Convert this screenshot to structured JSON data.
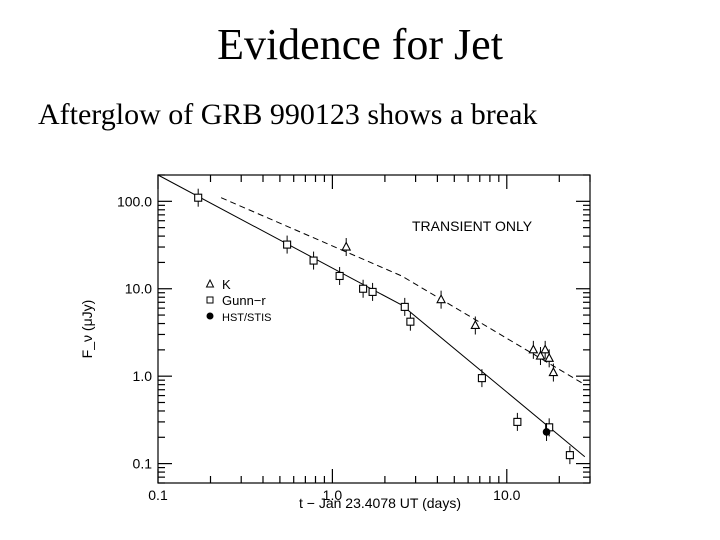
{
  "slide": {
    "title": "Evidence for Jet",
    "bullet": "Afterglow of GRB 990123 shows a break"
  },
  "chart_data": {
    "type": "scatter",
    "xscale": "log",
    "yscale": "log",
    "xlim": [
      0.1,
      30
    ],
    "ylim": [
      0.06,
      200
    ],
    "xlabel": "t − Jan 23.4078 UT (days)",
    "ylabel": "F_ν (μJy)",
    "xticks": [
      {
        "v": 0.1,
        "label": "0.1"
      },
      {
        "v": 1,
        "label": "1.0"
      },
      {
        "v": 10,
        "label": "10.0"
      }
    ],
    "yticks": [
      {
        "v": 0.1,
        "label": "0.1"
      },
      {
        "v": 1,
        "label": "1.0"
      },
      {
        "v": 10,
        "label": "10.0"
      },
      {
        "v": 100,
        "label": "100.0"
      }
    ],
    "annotation": "TRANSIENT ONLY",
    "legend": [
      {
        "symbol": "triangle",
        "label": "K"
      },
      {
        "symbol": "square",
        "label": "Gunn−r"
      },
      {
        "symbol": "circle",
        "label": "HST/STIS"
      }
    ],
    "series": [
      {
        "name": "K",
        "symbol": "triangle",
        "points": [
          {
            "x": 1.2,
            "y": 30
          },
          {
            "x": 4.2,
            "y": 7.5
          },
          {
            "x": 6.6,
            "y": 3.8
          },
          {
            "x": 14.2,
            "y": 2.0
          },
          {
            "x": 15.6,
            "y": 1.7
          },
          {
            "x": 16.6,
            "y": 2.0
          },
          {
            "x": 17.5,
            "y": 1.6
          },
          {
            "x": 18.5,
            "y": 1.1
          }
        ]
      },
      {
        "name": "Gunn−r",
        "symbol": "square",
        "points": [
          {
            "x": 0.17,
            "y": 110
          },
          {
            "x": 0.55,
            "y": 32
          },
          {
            "x": 0.78,
            "y": 21
          },
          {
            "x": 1.1,
            "y": 14
          },
          {
            "x": 1.5,
            "y": 10
          },
          {
            "x": 1.7,
            "y": 9.2
          },
          {
            "x": 2.6,
            "y": 6.2
          },
          {
            "x": 2.8,
            "y": 4.2
          },
          {
            "x": 7.2,
            "y": 0.95
          },
          {
            "x": 11.5,
            "y": 0.3
          },
          {
            "x": 17.5,
            "y": 0.26
          },
          {
            "x": 23.0,
            "y": 0.125
          }
        ]
      },
      {
        "name": "HST/STIS",
        "symbol": "circle",
        "points": [
          {
            "x": 16.9,
            "y": 0.23
          }
        ]
      }
    ],
    "fits": [
      {
        "name": "Gunn-r fit",
        "style": "solid",
        "points": [
          {
            "x": 0.1,
            "y": 200
          },
          {
            "x": 2.5,
            "y": 6.5
          },
          {
            "x": 28,
            "y": 0.12
          }
        ]
      },
      {
        "name": "K fit",
        "style": "dashed",
        "points": [
          {
            "x": 0.23,
            "y": 110
          },
          {
            "x": 2.5,
            "y": 14
          },
          {
            "x": 28,
            "y": 0.8
          }
        ]
      }
    ]
  }
}
